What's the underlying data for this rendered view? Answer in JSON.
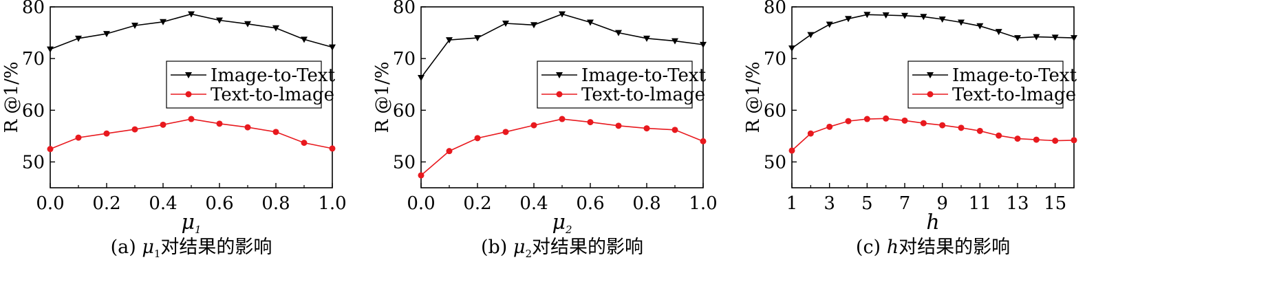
{
  "chart_data": [
    {
      "type": "line",
      "caption": "(a) μ₁对结果的影响",
      "xlabel": "μ₁",
      "ylabel": "R @1/%",
      "x": [
        0.0,
        0.1,
        0.2,
        0.3,
        0.4,
        0.5,
        0.6,
        0.7,
        0.8,
        0.9,
        1.0
      ],
      "xlim": [
        0,
        1
      ],
      "ylim": [
        45,
        80
      ],
      "xticks": [
        "0.0",
        "0.2",
        "0.4",
        "0.6",
        "0.8",
        "1.0"
      ],
      "xtick_values": [
        0.0,
        0.2,
        0.4,
        0.6,
        0.8,
        1.0
      ],
      "xtick_minor": [
        0.1,
        0.3,
        0.5,
        0.7,
        0.9
      ],
      "yticks": [
        "50",
        "60",
        "70",
        "80"
      ],
      "ytick_values": [
        50,
        60,
        70,
        80
      ],
      "legend_position": "center-right",
      "series": [
        {
          "name": "Image-to-Text",
          "color": "#000000",
          "marker": "triangle-down",
          "values": [
            71.8,
            73.9,
            74.8,
            76.4,
            77.1,
            78.6,
            77.4,
            76.7,
            75.9,
            73.7,
            72.2
          ]
        },
        {
          "name": "Text-to-lmage",
          "color": "#e8191e",
          "marker": "circle",
          "values": [
            52.5,
            54.7,
            55.5,
            56.3,
            57.2,
            58.3,
            57.4,
            56.7,
            55.8,
            53.7,
            52.6
          ]
        }
      ]
    },
    {
      "type": "line",
      "caption": "(b) μ₂对结果的影响",
      "xlabel": "μ₂",
      "ylabel": "R @1/%",
      "x": [
        0.0,
        0.1,
        0.2,
        0.3,
        0.4,
        0.5,
        0.6,
        0.7,
        0.8,
        0.9,
        1.0
      ],
      "xlim": [
        0,
        1
      ],
      "ylim": [
        45,
        80
      ],
      "xticks": [
        "0.0",
        "0.2",
        "0.4",
        "0.6",
        "0.8",
        "1.0"
      ],
      "xtick_values": [
        0.0,
        0.2,
        0.4,
        0.6,
        0.8,
        1.0
      ],
      "xtick_minor": [
        0.1,
        0.3,
        0.5,
        0.7,
        0.9
      ],
      "yticks": [
        "50",
        "60",
        "70",
        "80"
      ],
      "ytick_values": [
        50,
        60,
        70,
        80
      ],
      "legend_position": "center-right",
      "series": [
        {
          "name": "Image-to-Text",
          "color": "#000000",
          "marker": "triangle-down",
          "values": [
            66.3,
            73.6,
            74.0,
            76.8,
            76.5,
            78.6,
            77.0,
            75.0,
            73.9,
            73.4,
            72.7
          ]
        },
        {
          "name": "Text-to-lmage",
          "color": "#e8191e",
          "marker": "circle",
          "values": [
            47.4,
            52.1,
            54.6,
            55.8,
            57.1,
            58.3,
            57.7,
            57.0,
            56.5,
            56.2,
            54.0
          ]
        }
      ]
    },
    {
      "type": "line",
      "caption": "(c) h对结果的影响",
      "xlabel": "h",
      "ylabel": "R @1/%",
      "x": [
        1,
        2,
        3,
        4,
        5,
        6,
        7,
        8,
        9,
        10,
        11,
        12,
        13,
        14,
        15,
        16
      ],
      "xlim": [
        1,
        16
      ],
      "ylim": [
        45,
        80
      ],
      "xticks": [
        "1",
        "3",
        "5",
        "7",
        "9",
        "11",
        "13",
        "15"
      ],
      "xtick_values": [
        1,
        3,
        5,
        7,
        9,
        11,
        13,
        15
      ],
      "xtick_minor": [
        2,
        4,
        6,
        8,
        10,
        12,
        14,
        16
      ],
      "yticks": [
        "50",
        "60",
        "70",
        "80"
      ],
      "ytick_values": [
        50,
        60,
        70,
        80
      ],
      "legend_position": "center-right",
      "series": [
        {
          "name": "Image-to-Text",
          "color": "#000000",
          "marker": "triangle-down",
          "values": [
            72.0,
            74.6,
            76.6,
            77.7,
            78.5,
            78.4,
            78.3,
            78.1,
            77.6,
            77.0,
            76.3,
            75.2,
            74.0,
            74.2,
            74.1,
            74.0
          ]
        },
        {
          "name": "Text-to-lmage",
          "color": "#e8191e",
          "marker": "circle",
          "values": [
            52.2,
            55.5,
            56.8,
            57.9,
            58.3,
            58.4,
            58.0,
            57.5,
            57.1,
            56.6,
            56.0,
            55.1,
            54.5,
            54.3,
            54.1,
            54.2
          ]
        }
      ]
    }
  ]
}
